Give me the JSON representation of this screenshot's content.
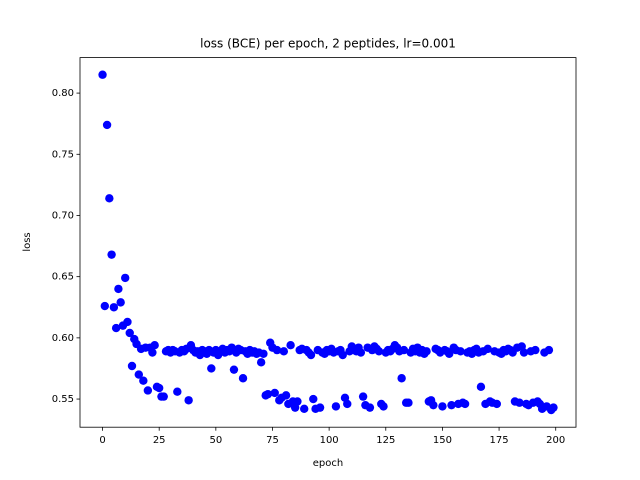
{
  "chart_data": {
    "type": "scatter",
    "title": "loss (BCE) per epoch, 2 peptides, lr=0.001",
    "x_label": "epoch",
    "y_label": "loss",
    "color": "#0000ff",
    "xlim": [
      -9.95,
      208.95
    ],
    "ylim": [
      0.527,
      0.829
    ],
    "xticks": [
      0,
      25,
      50,
      75,
      100,
      125,
      150,
      175,
      200
    ],
    "yticks": [
      0.55,
      {
        "value": 0.6,
        "label": "0.60"
      },
      0.65,
      {
        "value": 0.7,
        "label": "0.70"
      },
      0.75,
      {
        "value": 0.8,
        "label": "0.80"
      }
    ],
    "x": [
      0,
      1,
      2,
      3,
      4,
      5,
      6,
      7,
      8,
      9,
      10,
      11,
      12,
      13,
      14,
      15,
      16,
      17,
      18,
      19,
      20,
      21,
      22,
      23,
      24,
      25,
      26,
      27,
      28,
      29,
      30,
      31,
      32,
      33,
      34,
      35,
      36,
      37,
      38,
      39,
      40,
      41,
      42,
      43,
      44,
      45,
      46,
      47,
      48,
      49,
      50,
      51,
      52,
      53,
      54,
      55,
      56,
      57,
      58,
      59,
      60,
      61,
      62,
      63,
      64,
      65,
      66,
      67,
      68,
      69,
      70,
      71,
      72,
      73,
      74,
      75,
      76,
      77,
      78,
      79,
      80,
      81,
      82,
      83,
      84,
      85,
      86,
      87,
      88,
      89,
      90,
      91,
      92,
      93,
      94,
      95,
      96,
      97,
      98,
      99,
      100,
      101,
      102,
      103,
      104,
      105,
      106,
      107,
      108,
      109,
      110,
      111,
      112,
      113,
      114,
      115,
      116,
      117,
      118,
      119,
      120,
      121,
      122,
      123,
      124,
      125,
      126,
      127,
      128,
      129,
      130,
      131,
      132,
      133,
      134,
      135,
      136,
      137,
      138,
      139,
      140,
      141,
      142,
      143,
      144,
      145,
      146,
      147,
      148,
      149,
      150,
      151,
      152,
      153,
      154,
      155,
      156,
      157,
      158,
      159,
      160,
      161,
      162,
      163,
      164,
      165,
      166,
      167,
      168,
      169,
      170,
      171,
      172,
      173,
      174,
      175,
      176,
      177,
      178,
      179,
      180,
      181,
      182,
      183,
      184,
      185,
      186,
      187,
      188,
      189,
      190,
      191,
      192,
      193,
      194,
      195,
      196,
      197,
      198,
      199
    ],
    "values": [
      0.815,
      0.626,
      0.774,
      0.714,
      0.668,
      0.625,
      0.608,
      0.64,
      0.629,
      0.61,
      0.649,
      0.613,
      0.604,
      0.577,
      0.599,
      0.595,
      0.57,
      0.591,
      0.565,
      0.592,
      0.557,
      0.592,
      0.588,
      0.594,
      0.56,
      0.559,
      0.552,
      0.552,
      0.589,
      0.59,
      0.588,
      0.59,
      0.589,
      0.556,
      0.588,
      0.59,
      0.589,
      0.591,
      0.549,
      0.594,
      0.59,
      0.588,
      0.589,
      0.586,
      0.59,
      0.589,
      0.587,
      0.59,
      0.575,
      0.588,
      0.59,
      0.586,
      0.589,
      0.591,
      0.588,
      0.59,
      0.589,
      0.592,
      0.574,
      0.588,
      0.591,
      0.59,
      0.567,
      0.589,
      0.587,
      0.59,
      0.588,
      0.589,
      0.587,
      0.588,
      0.58,
      0.587,
      0.553,
      0.554,
      0.596,
      0.592,
      0.555,
      0.59,
      0.549,
      0.551,
      0.589,
      0.553,
      0.546,
      0.594,
      0.548,
      0.543,
      0.548,
      0.59,
      0.591,
      0.542,
      0.59,
      0.588,
      0.586,
      0.55,
      0.542,
      0.59,
      0.543,
      0.588,
      0.587,
      0.59,
      0.589,
      0.591,
      0.588,
      0.544,
      0.589,
      0.59,
      0.586,
      0.551,
      0.546,
      0.589,
      0.593,
      0.59,
      0.589,
      0.592,
      0.588,
      0.552,
      0.545,
      0.592,
      0.543,
      0.59,
      0.593,
      0.591,
      0.589,
      0.546,
      0.544,
      0.588,
      0.59,
      0.589,
      0.591,
      0.594,
      0.592,
      0.589,
      0.567,
      0.59,
      0.547,
      0.547,
      0.588,
      0.591,
      0.589,
      0.592,
      0.588,
      0.59,
      0.587,
      0.589,
      0.548,
      0.549,
      0.545,
      0.591,
      0.59,
      0.588,
      0.544,
      0.59,
      0.589,
      0.587,
      0.545,
      0.592,
      0.59,
      0.546,
      0.589,
      0.547,
      0.546,
      0.588,
      0.589,
      0.587,
      0.59,
      0.591,
      0.588,
      0.56,
      0.589,
      0.546,
      0.591,
      0.548,
      0.547,
      0.589,
      0.546,
      0.588,
      0.587,
      0.59,
      0.589,
      0.591,
      0.59,
      0.588,
      0.548,
      0.592,
      0.547,
      0.593,
      0.588,
      0.546,
      0.545,
      0.589,
      0.547,
      0.59,
      0.548,
      0.546,
      0.542,
      0.588,
      0.544,
      0.59,
      0.541,
      0.543
    ]
  }
}
